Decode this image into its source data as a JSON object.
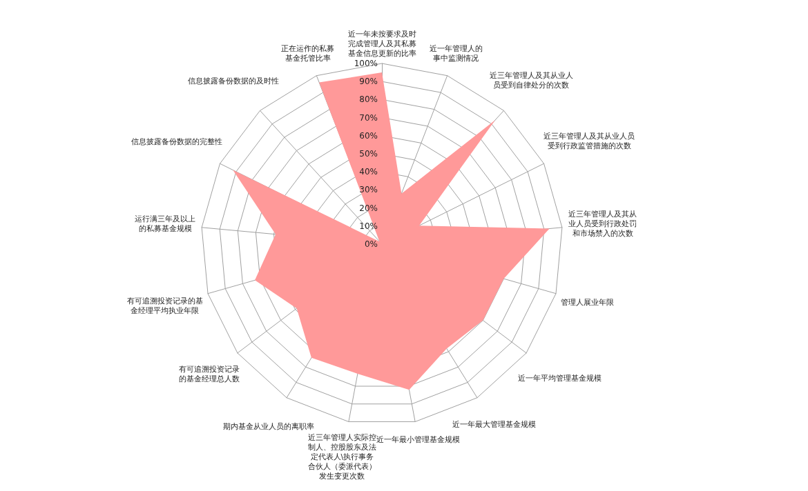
{
  "chart_data": {
    "type": "radar",
    "categories": [
      "近一年未按要求及时完成管理人及其私募基金信息更新的比率",
      "近一年管理人的事中监测情况",
      "近三年管理人及其从业人员受到自律处分的次数",
      "近三年管理人及其从业人员受到行政监管措施的次数",
      "近三年管理人及其从业人员受到行政处罚和市场禁入的次数",
      "管理人展业年限",
      "近一年平均管理基金规模",
      "近一年最大管理基金规模",
      "近一年最小管理基金规模",
      "近三年管理人实际控制人、控股股东及法定代表人\\执行事务合伙人（委派代表）发生变更次数",
      "期内基金从业人员的离职率",
      "有可追溯投资记录的基金经理总人数",
      "有可追溯投资记录的基金经理平均执业年限",
      "运行满三年及以上的私募基金规模",
      "信息披露备份数据的完整性",
      "信息披露备份数据的及时性",
      "正在运作的私募基金托管比率"
    ],
    "series": [
      {
        "color": "#ff9999",
        "values": [
          95,
          30,
          93,
          23,
          93,
          70,
          70,
          68,
          82,
          73,
          74,
          59,
          73,
          59,
          92,
          2,
          96
        ]
      }
    ],
    "ylim": [
      0,
      100
    ],
    "yticks": [
      {
        "value": 0,
        "label": "0%"
      },
      {
        "value": 10,
        "label": "10%"
      },
      {
        "value": 20,
        "label": "20%"
      },
      {
        "value": 30,
        "label": "30%"
      },
      {
        "value": 40,
        "label": "40%"
      },
      {
        "value": 50,
        "label": "50%"
      },
      {
        "value": 60,
        "label": "60%"
      },
      {
        "value": 70,
        "label": "70%"
      },
      {
        "value": 80,
        "label": "80%"
      },
      {
        "value": 90,
        "label": "90%"
      },
      {
        "value": 100,
        "label": "100%"
      }
    ]
  }
}
